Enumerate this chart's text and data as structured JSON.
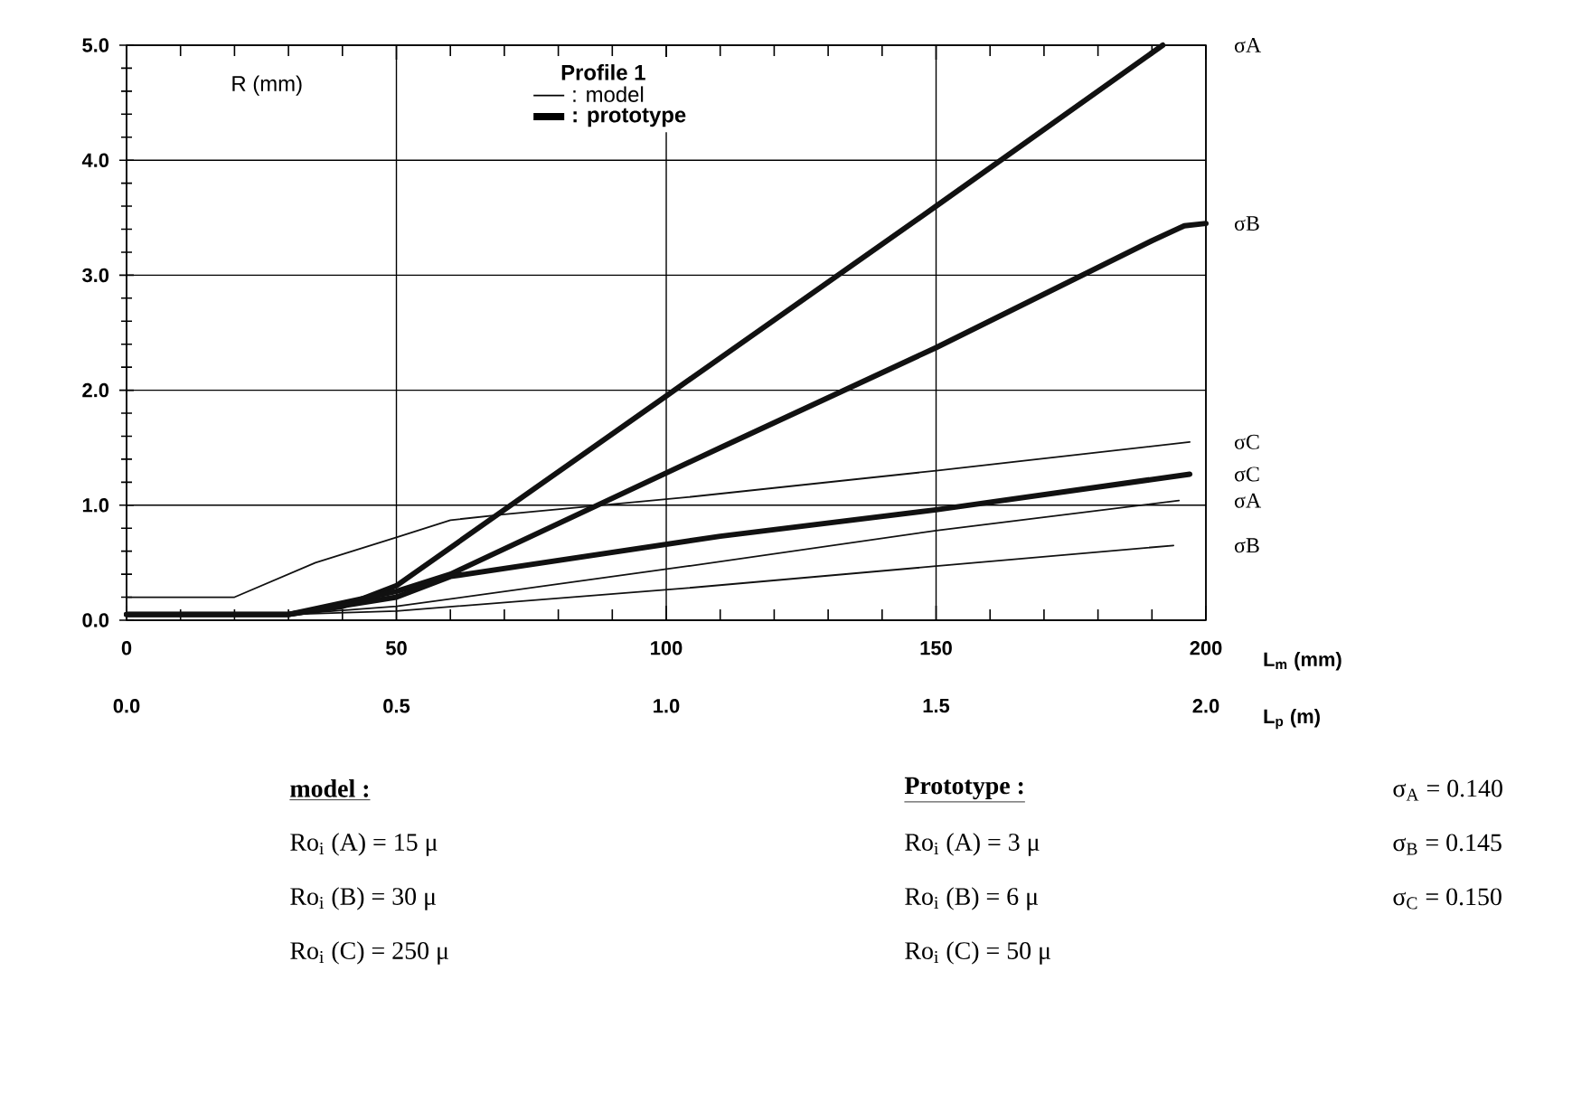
{
  "chart_data": {
    "type": "line",
    "ylabel": "R (mm)",
    "xlabel": "L$_{m}$ (mm)",
    "x2label": "L$_{p}$ (m)",
    "xlim": [
      0,
      200
    ],
    "xticks": [
      0,
      50,
      100,
      150,
      200
    ],
    "x2lim": [
      0,
      2
    ],
    "x2ticks": [
      {
        "value": 0,
        "label": "0.0"
      },
      {
        "value": 0.5,
        "label": "0.5"
      },
      {
        "value": 1,
        "label": "1.0"
      },
      {
        "value": 1.5,
        "label": "1.5"
      },
      {
        "value": 2,
        "label": "2.0"
      }
    ],
    "ylim": [
      0,
      5
    ],
    "yticks": [
      {
        "value": 0,
        "label": "0.0"
      },
      {
        "value": 1,
        "label": "1.0"
      },
      {
        "value": 2,
        "label": "2.0"
      },
      {
        "value": 3,
        "label": "3.0"
      },
      {
        "value": 4,
        "label": "4.0"
      },
      {
        "value": 5,
        "label": "5.0"
      }
    ],
    "grid": true,
    "legend": "top",
    "marker": "none",
    "line_style": "solid",
    "series": [
      {
        "name": "σA",
        "color": "#111111",
        "x": [
          0,
          30,
          40,
          50,
          100,
          150,
          192
        ],
        "values": [
          0.05,
          0.05,
          0.12,
          0.3,
          1.95,
          3.6,
          5.0
        ]
      },
      {
        "name": "σB",
        "color": "#111111",
        "x": [
          0,
          30,
          50,
          60,
          110,
          150,
          190,
          196,
          200
        ],
        "values": [
          0.05,
          0.05,
          0.25,
          0.4,
          1.5,
          2.37,
          3.3,
          3.43,
          3.45
        ]
      },
      {
        "name": "σC",
        "color": "#111111",
        "x": [
          0,
          30,
          50,
          60,
          110,
          150,
          197
        ],
        "values": [
          0.05,
          0.05,
          0.2,
          0.38,
          0.73,
          0.96,
          1.27
        ]
      },
      {
        "name": "σC",
        "color": "#111111",
        "x": [
          0,
          20,
          35,
          50,
          60,
          70,
          104,
          150,
          197
        ],
        "values": [
          0.2,
          0.2,
          0.5,
          0.72,
          0.87,
          0.92,
          1.07,
          1.3,
          1.55
        ]
      },
      {
        "name": "σA",
        "color": "#111111",
        "x": [
          0,
          30,
          50,
          104,
          150,
          195
        ],
        "values": [
          0.05,
          0.05,
          0.12,
          0.47,
          0.78,
          1.04
        ]
      },
      {
        "name": "σB",
        "color": "#111111",
        "x": [
          0,
          30,
          50,
          104,
          150,
          194
        ],
        "values": [
          0.05,
          0.05,
          0.08,
          0.28,
          0.47,
          0.65
        ]
      }
    ],
    "annotations": [
      "Profile 1",
      ": model",
      ": prototype",
      "model :",
      "Ro$_{i}$ (A) =   15 μ",
      "Ro$_{i}$ (B) =   30 μ",
      "Ro$_{i}$ (C) = 250 μ",
      "Prototype :",
      "Ro$_{i}$ (A) =     3 μ",
      "Ro$_{i}$ (B) =     6 μ",
      "Ro$_{i}$ (C) =   50 μ",
      "σ$_{A}$ = 0.140",
      "σ$_{B}$ = 0.145",
      "σ$_{C}$ = 0.150"
    ]
  }
}
